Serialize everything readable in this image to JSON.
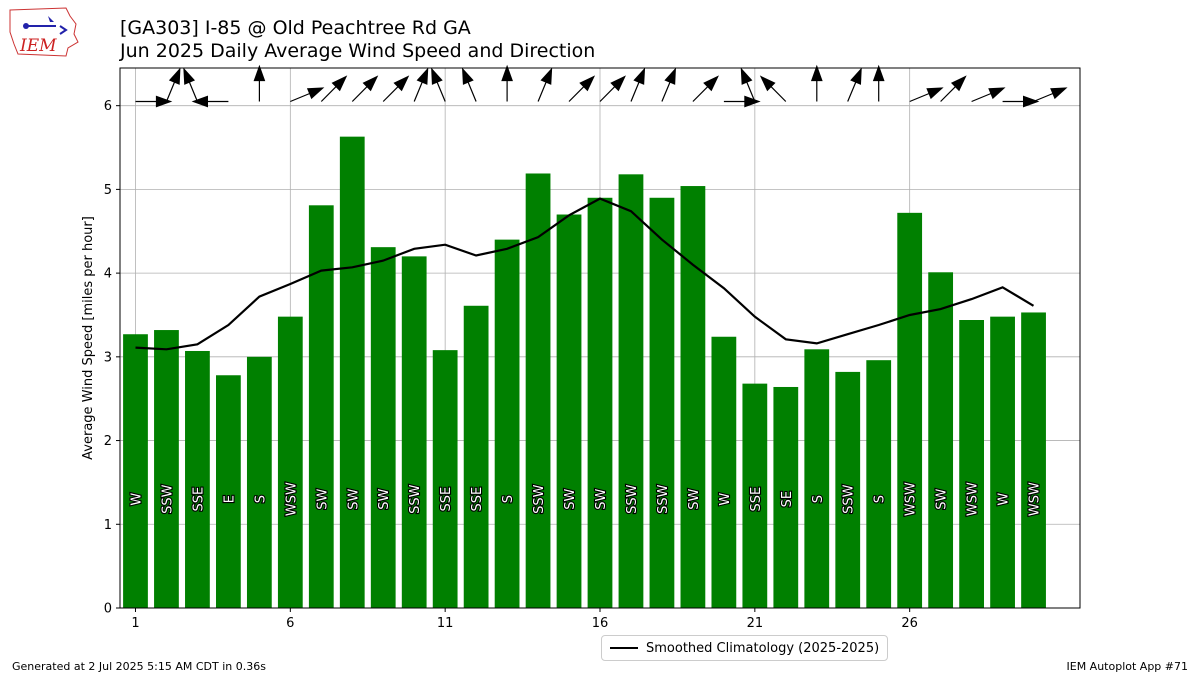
{
  "logo_text": "IEM",
  "title_line1": "[GA303] I-85 @ Old Peachtree Rd  GA",
  "title_line2": "Jun 2025 Daily Average Wind Speed and Direction",
  "footer_left": "Generated at 2 Jul 2025 5:15 AM CDT in 0.36s",
  "footer_right": "IEM Autoplot App #71",
  "colors": {
    "bar": "#008000",
    "line": "#000000",
    "grid": "#b0b0b0"
  },
  "chart_data": {
    "type": "bar",
    "xlabel": "",
    "ylabel": "Average Wind Speed [miles per hour]",
    "xlim": [
      0.5,
      31.5
    ],
    "ylim": [
      0,
      6.45
    ],
    "x_ticks": [
      1,
      6,
      11,
      16,
      21,
      26
    ],
    "y_ticks": [
      0,
      1,
      2,
      3,
      4,
      5,
      6
    ],
    "grid": true,
    "legend_placement": "bottom-center",
    "days": [
      1,
      2,
      3,
      4,
      5,
      6,
      7,
      8,
      9,
      10,
      11,
      12,
      13,
      14,
      15,
      16,
      17,
      18,
      19,
      20,
      21,
      22,
      23,
      24,
      25,
      26,
      27,
      28,
      29,
      30
    ],
    "series": [
      {
        "type": "bar",
        "values": [
          3.27,
          3.32,
          3.07,
          2.78,
          3.0,
          3.48,
          4.81,
          5.63,
          4.31,
          4.2,
          3.08,
          3.61,
          4.4,
          5.19,
          4.7,
          4.9,
          5.18,
          4.9,
          5.04,
          3.24,
          2.68,
          2.64,
          3.09,
          2.82,
          2.96,
          4.72,
          4.01,
          3.44,
          3.48,
          3.53
        ],
        "directions": [
          "W",
          "SSW",
          "SSE",
          "E",
          "S",
          "WSW",
          "SW",
          "SW",
          "SW",
          "SSW",
          "SSE",
          "SSE",
          "S",
          "SSW",
          "SW",
          "SW",
          "SSW",
          "SSW",
          "SW",
          "W",
          "SSE",
          "SE",
          "S",
          "SSW",
          "S",
          "WSW",
          "SW",
          "WSW",
          "W",
          "WSW"
        ],
        "direction_degrees": [
          270,
          202.5,
          157.5,
          90,
          180,
          247.5,
          225,
          225,
          225,
          202.5,
          157.5,
          157.5,
          180,
          202.5,
          225,
          225,
          202.5,
          202.5,
          225,
          270,
          157.5,
          135,
          180,
          202.5,
          180,
          247.5,
          225,
          247.5,
          270,
          247.5
        ]
      },
      {
        "type": "line",
        "name": "Smoothed Climatology (2025-2025)",
        "values": [
          3.11,
          3.09,
          3.15,
          3.38,
          3.72,
          3.87,
          4.03,
          4.07,
          4.15,
          4.29,
          4.34,
          4.21,
          4.29,
          4.43,
          4.69,
          4.89,
          4.74,
          4.4,
          4.1,
          3.82,
          3.48,
          3.21,
          3.16,
          3.27,
          3.38,
          3.5,
          3.57,
          3.69,
          3.83,
          3.61
        ]
      }
    ]
  }
}
